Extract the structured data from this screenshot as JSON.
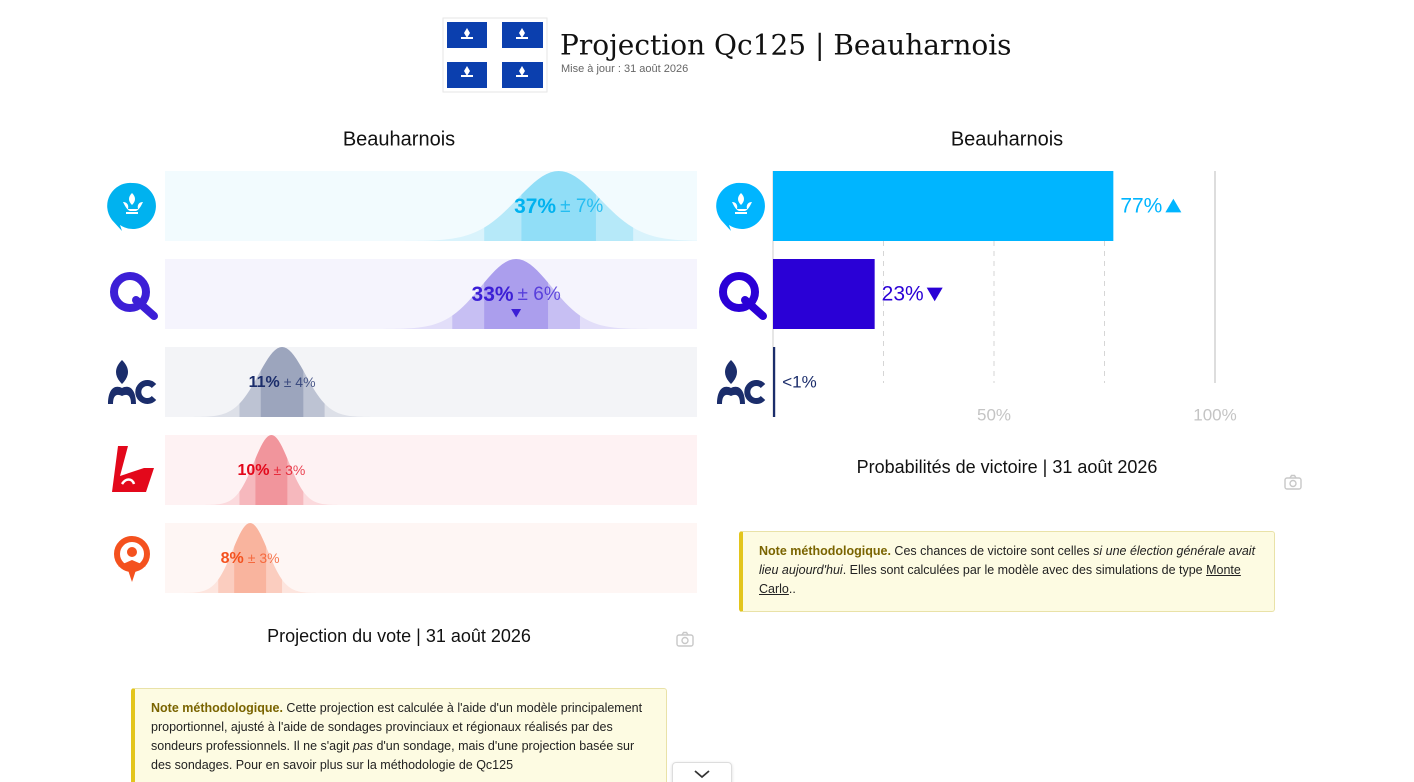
{
  "header": {
    "title": "Projection Qc125 | Beauharnois",
    "updated": "Mise à jour : 31 août 2026"
  },
  "chart_data": [
    {
      "type": "interval",
      "title": "Beauharnois",
      "caption": "Projection du vote | 31 août 2026",
      "values": [
        37,
        33,
        11,
        10,
        8
      ],
      "errors": [
        7,
        6,
        4,
        3,
        3
      ],
      "value_labels": [
        "37%",
        "33%",
        "11%",
        "10%",
        "8%"
      ],
      "error_labels": [
        "± 7%",
        "± 6%",
        "± 4%",
        "± 3%",
        "± 3%"
      ],
      "colors": [
        "#00b2ef",
        "#3c1fd6",
        "#1b2d6b",
        "#e3081b",
        "#f4511e"
      ],
      "trends": [
        null,
        "down",
        null,
        null,
        null
      ],
      "xlim": [
        0,
        50
      ]
    },
    {
      "type": "hbar",
      "title": "Beauharnois",
      "caption": "Probabilités de victoire | 31 août 2026",
      "values": [
        77,
        23,
        0.5
      ],
      "value_labels": [
        "77%",
        "23%",
        "<1%"
      ],
      "colors": [
        "#00b5ff",
        "#2a00d6",
        "#1b2d6b"
      ],
      "trends": [
        "up",
        "down",
        null
      ],
      "xlim": [
        0,
        100
      ],
      "xticks": [
        {
          "value": 25,
          "label": null
        },
        {
          "value": 50,
          "label": "50%"
        },
        {
          "value": 75,
          "label": null
        },
        {
          "value": 100,
          "label": "100%"
        }
      ]
    }
  ],
  "notes": [
    {
      "parts": [
        "Note méthodologique.",
        " Ces chances de victoire sont celles ",
        "si une élection générale avait lieu aujourd'hui",
        ". Elles sont calculées par le modèle avec des simulations de type ",
        "Monte Carlo",
        ".."
      ]
    },
    {
      "parts": [
        "Note méthodologique.",
        " Cette projection est calculée à l'aide d'un modèle principalement proportionnel, ajusté à l'aide de sondages provinciaux et régionaux réalisés par des sondeurs professionnels. Il ne s'agit ",
        "pas",
        " d'un sondage, mais d'une projection basée sur des sondages. Pour en savoir plus sur la méthodologie de Qc125"
      ]
    }
  ]
}
